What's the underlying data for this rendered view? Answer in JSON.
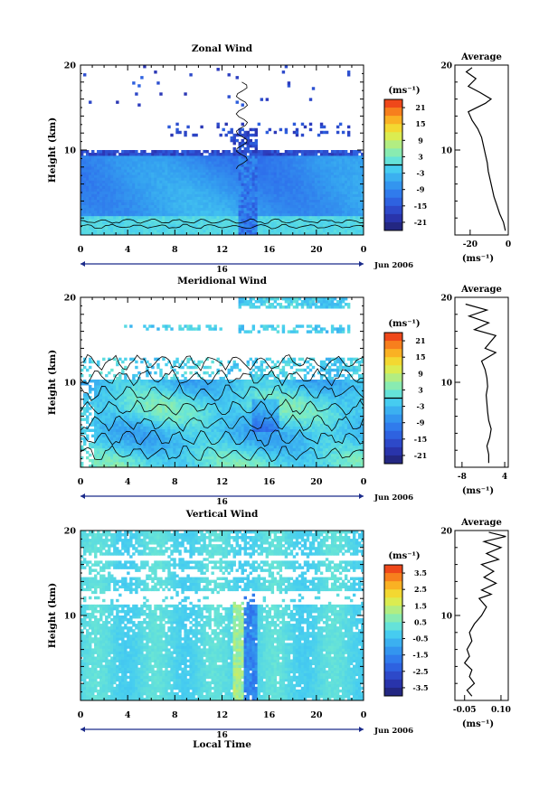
{
  "chart_data": [
    {
      "type": "heatmap",
      "title": "Zonal Wind",
      "xlabel": "",
      "ylabel": "Height (km)",
      "x_ticks": [
        "0",
        "4",
        "8",
        "12",
        "16",
        "20",
        "0"
      ],
      "y_ticks": [
        "20",
        "10"
      ],
      "xlim": [
        0,
        24
      ],
      "ylim": [
        0,
        20
      ],
      "date_label": "16",
      "month_label": "Jun 2006",
      "colorbar": {
        "unit": "(ms⁻¹)",
        "tick_labels": [
          "21",
          "15",
          "9",
          "3",
          "-3",
          "-9",
          "-15",
          "-21"
        ],
        "range": [
          -24,
          24
        ],
        "zero_line": true
      },
      "profile": {
        "title": "Average",
        "x_ticks": [
          "-20",
          "0"
        ],
        "xlim": [
          -28,
          0
        ],
        "xunit": "(ms⁻¹)",
        "y_ticks": [
          "20",
          "10"
        ],
        "points": [
          [
            -1.5,
            0.5
          ],
          [
            -2.5,
            1.5
          ],
          [
            -4.5,
            2.5
          ],
          [
            -6,
            3.5
          ],
          [
            -7.5,
            4.5
          ],
          [
            -8.5,
            5.5
          ],
          [
            -9.5,
            6.5
          ],
          [
            -10.5,
            7.5
          ],
          [
            -11,
            8.5
          ],
          [
            -12,
            9.5
          ],
          [
            -13,
            10.5
          ],
          [
            -14,
            11.5
          ],
          [
            -16,
            12.5
          ],
          [
            -19,
            13.5
          ],
          [
            -21,
            14.5
          ],
          [
            -12,
            15.5
          ],
          [
            -9,
            16
          ],
          [
            -15,
            16.8
          ],
          [
            -21,
            17.5
          ],
          [
            -17,
            18.4
          ],
          [
            -22,
            19.2
          ],
          [
            -19,
            19.7
          ]
        ]
      }
    },
    {
      "type": "heatmap",
      "title": "Meridional Wind",
      "xlabel": "",
      "ylabel": "Height (km)",
      "x_ticks": [
        "0",
        "4",
        "8",
        "12",
        "16",
        "20",
        "0"
      ],
      "y_ticks": [
        "20",
        "10"
      ],
      "xlim": [
        0,
        24
      ],
      "ylim": [
        0,
        20
      ],
      "date_label": "16",
      "month_label": "Jun 2006",
      "colorbar": {
        "unit": "(ms⁻¹)",
        "tick_labels": [
          "21",
          "15",
          "9",
          "3",
          "-3",
          "-9",
          "-15",
          "-21"
        ],
        "range": [
          -24,
          24
        ],
        "zero_line": true
      },
      "profile": {
        "title": "Average",
        "x_ticks": [
          "-8",
          "4"
        ],
        "xlim": [
          -10,
          5
        ],
        "xunit": "(ms⁻¹)",
        "y_ticks": [
          "20",
          "10"
        ],
        "points": [
          [
            -0.5,
            0.5
          ],
          [
            -0.5,
            1.5
          ],
          [
            -1,
            2.5
          ],
          [
            -0.2,
            3.5
          ],
          [
            0.2,
            4.5
          ],
          [
            -0.5,
            5.5
          ],
          [
            -0.8,
            6.5
          ],
          [
            -1,
            7.5
          ],
          [
            -1.2,
            8.5
          ],
          [
            -0.8,
            9.5
          ],
          [
            -1,
            10.5
          ],
          [
            -1.5,
            11.5
          ],
          [
            -2.5,
            12.5
          ],
          [
            1.5,
            13.5
          ],
          [
            -1.5,
            14
          ],
          [
            1.5,
            15.5
          ],
          [
            -4.5,
            16.2
          ],
          [
            -0.5,
            17
          ],
          [
            -6,
            17.8
          ],
          [
            -1,
            18.5
          ],
          [
            -7,
            19.2
          ]
        ]
      }
    },
    {
      "type": "heatmap",
      "title": "Vertical Wind",
      "xlabel": "Local Time",
      "ylabel": "Height (km)",
      "x_ticks": [
        "0",
        "4",
        "8",
        "12",
        "16",
        "20",
        "0"
      ],
      "y_ticks": [
        "20",
        "10"
      ],
      "xlim": [
        0,
        24
      ],
      "ylim": [
        0,
        20
      ],
      "date_label": "16",
      "month_label": "Jun 2006",
      "colorbar": {
        "unit": "(ms⁻¹)",
        "tick_labels": [
          "3.5",
          "2.5",
          "1.5",
          "0.5",
          "-0.5",
          "-1.5",
          "-2.5",
          "-3.5"
        ],
        "range": [
          -4,
          4
        ],
        "zero_line": false
      },
      "profile": {
        "title": "Average",
        "x_ticks": [
          "-0.05",
          "0.10"
        ],
        "xlim": [
          -0.09,
          0.13
        ],
        "xunit": "(ms⁻¹)",
        "y_ticks": [
          "20",
          "10"
        ],
        "points": [
          [
            -0.02,
            0.5
          ],
          [
            -0.04,
            1.2
          ],
          [
            -0.01,
            2
          ],
          [
            -0.03,
            2.8
          ],
          [
            -0.02,
            3.6
          ],
          [
            -0.05,
            4.4
          ],
          [
            -0.03,
            5.2
          ],
          [
            -0.04,
            6
          ],
          [
            -0.02,
            7
          ],
          [
            -0.03,
            8
          ],
          [
            -0.01,
            9
          ],
          [
            0.02,
            10
          ],
          [
            0.04,
            11
          ],
          [
            0.01,
            12
          ],
          [
            0.06,
            12.5
          ],
          [
            0.02,
            13
          ],
          [
            0.08,
            13.8
          ],
          [
            0.03,
            14.5
          ],
          [
            0.07,
            15.2
          ],
          [
            0.02,
            16
          ],
          [
            0.09,
            16.6
          ],
          [
            0.04,
            17.3
          ],
          [
            0.1,
            18
          ],
          [
            0.03,
            18.7
          ],
          [
            0.12,
            19.3
          ],
          [
            0.05,
            19.8
          ]
        ]
      }
    }
  ]
}
